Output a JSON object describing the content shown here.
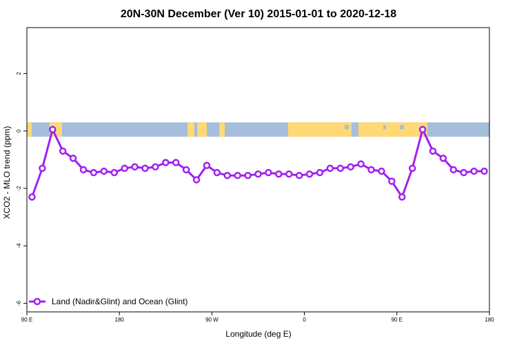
{
  "chart_data": {
    "type": "line",
    "title": "20N-30N December (Ver 10)   2015-01-01 to 2020-12-18",
    "xlabel": "Longitude (deg E)",
    "ylabel": "XCO2 - MLO trend (ppm)",
    "xlim": [
      90,
      540
    ],
    "ylim": [
      -6.3,
      3.6
    ],
    "x_ticks": [
      {
        "value": 90,
        "label": "90 E"
      },
      {
        "value": 180,
        "label": "180"
      },
      {
        "value": 270,
        "label": "90 W"
      },
      {
        "value": 360,
        "label": "0"
      },
      {
        "value": 450,
        "label": "90 E"
      },
      {
        "value": 540,
        "label": "180"
      }
    ],
    "y_ticks": [
      {
        "value": 2,
        "label": "2"
      },
      {
        "value": 0,
        "label": "0"
      },
      {
        "value": -2,
        "label": "-2"
      },
      {
        "value": -4,
        "label": "-4"
      },
      {
        "value": -6,
        "label": "-6"
      }
    ],
    "grid": false,
    "legend_position": "bottom-left",
    "background_band": {
      "ymin": -0.2,
      "ymax": 0.3,
      "ocean_color": "#a6bddb",
      "land_color": "#fed976"
    },
    "series": [
      {
        "name": "Land (Nadir&Glint) and Ocean (Glint)",
        "color": "#a020f0",
        "x": [
          95,
          105,
          115,
          125,
          135,
          145,
          155,
          165,
          175,
          185,
          195,
          205,
          215,
          225,
          235,
          245,
          255,
          265,
          275,
          285,
          295,
          305,
          315,
          325,
          335,
          345,
          355,
          365,
          375,
          385,
          395,
          405,
          415,
          425,
          435,
          445,
          455,
          465,
          475,
          485,
          495,
          505,
          515,
          525,
          535
        ],
        "values": [
          -2.3,
          -1.3,
          0.05,
          -0.7,
          -0.95,
          -1.35,
          -1.45,
          -1.4,
          -1.45,
          -1.3,
          -1.25,
          -1.3,
          -1.25,
          -1.1,
          -1.1,
          -1.35,
          -1.7,
          -1.2,
          -1.45,
          -1.55,
          -1.55,
          -1.55,
          -1.5,
          -1.45,
          -1.5,
          -1.5,
          -1.55,
          -1.5,
          -1.45,
          -1.3,
          -1.3,
          -1.25,
          -1.15,
          -1.35,
          -1.4,
          -1.75,
          -2.3,
          -1.3,
          0.05,
          -0.7,
          -0.95,
          -1.35,
          -1.45,
          -1.4,
          -1.4
        ]
      }
    ]
  }
}
